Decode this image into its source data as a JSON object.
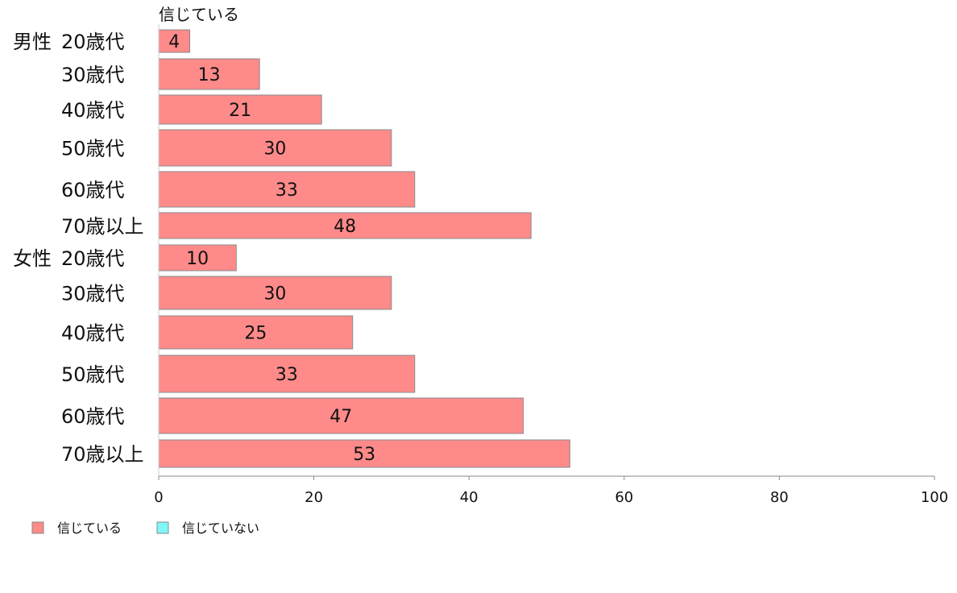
{
  "chart_data": {
    "type": "bar",
    "orientation": "horizontal",
    "stacked": true,
    "column_header": "信じている",
    "groups": [
      {
        "label": "男性",
        "categories": [
          "20歳代",
          "30歳代",
          "40歳代",
          "50歳代",
          "60歳代",
          "70歳以上"
        ],
        "values": [
          4,
          13,
          21,
          30,
          33,
          48
        ]
      },
      {
        "label": "女性",
        "categories": [
          "20歳代",
          "30歳代",
          "40歳代",
          "50歳代",
          "60歳代",
          "70歳以上"
        ],
        "values": [
          10,
          30,
          25,
          33,
          47,
          53
        ]
      }
    ],
    "series": [
      {
        "name": "信じている",
        "color": "#ff8a8a"
      },
      {
        "name": "信じていない",
        "color": "#7ff7f7"
      }
    ],
    "xlim": [
      0,
      100
    ],
    "xticks": [
      0,
      20,
      40,
      60,
      80,
      100
    ],
    "grid": false,
    "legend_position": "bottom-left"
  }
}
